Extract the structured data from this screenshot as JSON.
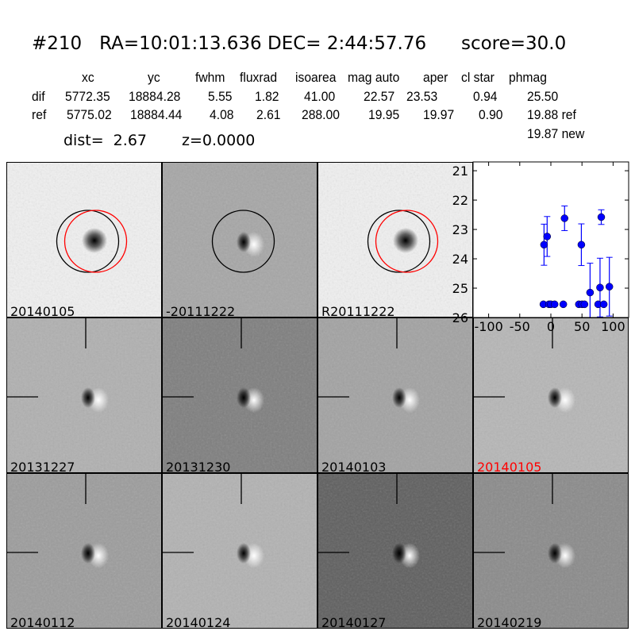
{
  "title": "#210   RA=10:01:13.636 DEC= 2:44:57.76      score=30.0",
  "table": {
    "headers": [
      "xc",
      "yc",
      "fwhm",
      "fluxrad",
      "isoarea",
      "mag auto",
      "aper",
      "cl star",
      "phmag"
    ],
    "rows": [
      {
        "label": "dif",
        "values": [
          "5772.35",
          "18884.28",
          "5.55",
          "1.82",
          "41.00",
          "22.57",
          "23.53",
          "0.94",
          "25.50"
        ]
      },
      {
        "label": "ref",
        "values": [
          "5775.02",
          "18884.44",
          "4.08",
          "2.61",
          "288.00",
          "19.95",
          "19.97",
          "0.90",
          "19.88 ref"
        ]
      }
    ],
    "extra": "19.87 new",
    "dist": "dist=  2.67",
    "z": "z=0.0000"
  },
  "panels": [
    {
      "label": "20140105",
      "bg": "#f0f0f0",
      "type": "star",
      "circles": [
        "#000000",
        "#ff0000"
      ]
    },
    {
      "label": "-20111222",
      "bg": "#a6a6a6",
      "type": "diff",
      "circles": [
        "#000000"
      ]
    },
    {
      "label": "R20111222",
      "bg": "#f0f0f0",
      "type": "star",
      "circles": [
        "#000000",
        "#ff0000"
      ]
    },
    {
      "label": "20131227",
      "bg": "#b0b0b0",
      "type": "diff"
    },
    {
      "label": "20131230",
      "bg": "#7e7e7e",
      "type": "diff"
    },
    {
      "label": "20140103",
      "bg": "#a2a2a2",
      "type": "diff"
    },
    {
      "label": "20140105",
      "bg": "#b6b6b6",
      "type": "diff",
      "label_color": "#ff0000"
    },
    {
      "label": "20140112",
      "bg": "#9c9c9c",
      "type": "diff"
    },
    {
      "label": "20140124",
      "bg": "#b2b2b2",
      "type": "diff"
    },
    {
      "label": "20140127",
      "bg": "#5e5e5e",
      "type": "diff"
    },
    {
      "label": "20140219",
      "bg": "#8a8a8a",
      "type": "diff"
    }
  ],
  "chart_data": {
    "type": "scatter",
    "xlim": [
      -125,
      125
    ],
    "ylim": [
      26,
      20.7
    ],
    "y_inverted": true,
    "xticks": [
      "-100",
      "-50",
      "0",
      "50",
      "100"
    ],
    "yticks": [
      "21",
      "22",
      "23",
      "24",
      "25",
      "26"
    ],
    "color": "#0000ff",
    "points": [
      {
        "x": -11,
        "y": 23.52,
        "err": 0.7
      },
      {
        "x": -6,
        "y": 23.24,
        "err": 0.68
      },
      {
        "x": 22,
        "y": 22.62,
        "err": 0.42
      },
      {
        "x": 49,
        "y": 23.52,
        "err": 0.71
      },
      {
        "x": 63,
        "y": 25.15,
        "err": 1.0
      },
      {
        "x": 79,
        "y": 24.98,
        "err": 1.0
      },
      {
        "x": 81,
        "y": 22.58,
        "err": 0.25
      },
      {
        "x": 94,
        "y": 24.95,
        "err": 1.0
      },
      {
        "x": -12,
        "y": 25.55,
        "err": 0.05
      },
      {
        "x": -3,
        "y": 25.55,
        "err": 0.05
      },
      {
        "x": 0,
        "y": 25.55,
        "err": 0.05
      },
      {
        "x": 6,
        "y": 25.55,
        "err": 0.05
      },
      {
        "x": 20,
        "y": 25.55,
        "err": 0.05
      },
      {
        "x": 45,
        "y": 25.55,
        "err": 0.05
      },
      {
        "x": 50,
        "y": 25.55,
        "err": 0.05
      },
      {
        "x": 54,
        "y": 25.55,
        "err": 0.05
      },
      {
        "x": 76,
        "y": 25.55,
        "err": 0.05
      },
      {
        "x": 85,
        "y": 25.55,
        "err": 0.05
      }
    ]
  }
}
